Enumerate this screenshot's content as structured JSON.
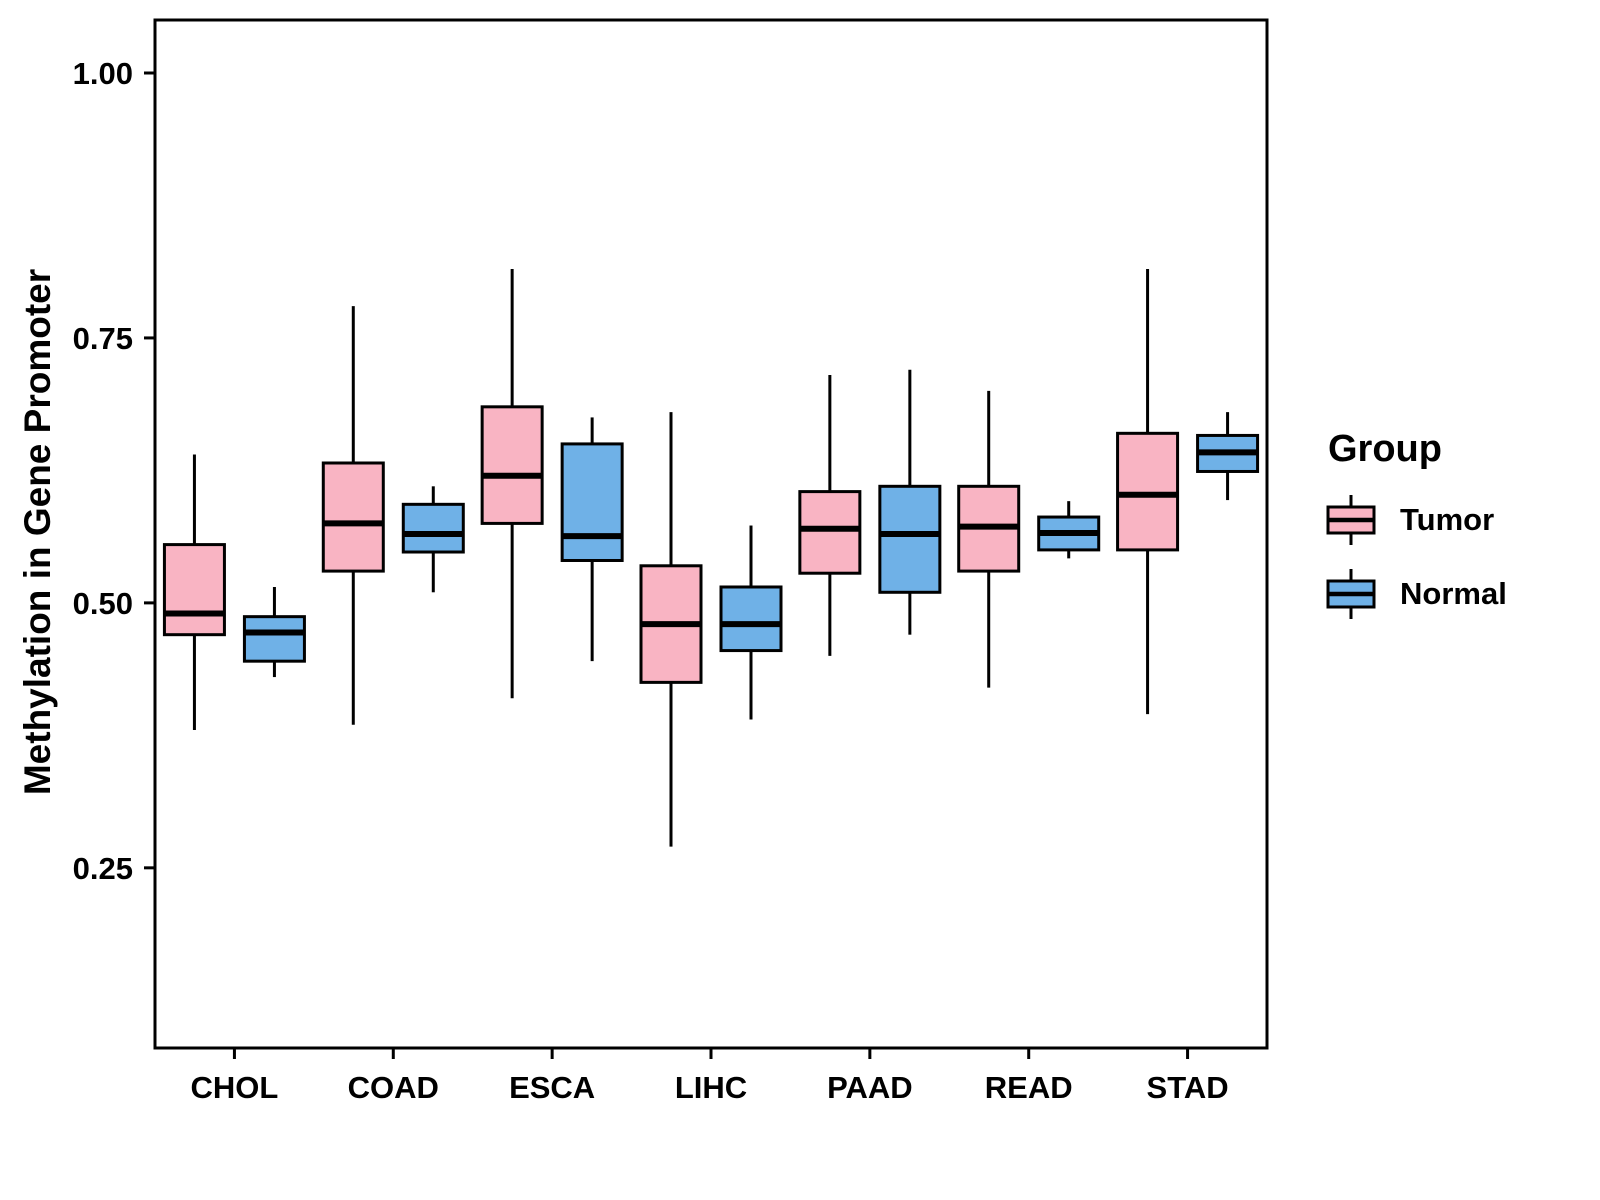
{
  "chart_data": {
    "type": "boxplot",
    "title": "",
    "xlabel": "",
    "ylabel": "Methylation in Gene Promoter",
    "categories": [
      "CHOL",
      "COAD",
      "ESCA",
      "LIHC",
      "PAAD",
      "READ",
      "STAD"
    ],
    "ylim": [
      0.08,
      1.05
    ],
    "yticks": [
      {
        "v": 0.25,
        "label": "0.25"
      },
      {
        "v": 0.5,
        "label": "0.50"
      },
      {
        "v": 0.75,
        "label": "0.75"
      },
      {
        "v": 1.0,
        "label": "1.00"
      }
    ],
    "grid": false,
    "legend_position": "right",
    "legend": {
      "title": "Group",
      "entries": [
        {
          "label": "Tumor",
          "color": "#F9B4C3"
        },
        {
          "label": "Normal",
          "color": "#6FB1E7"
        }
      ]
    },
    "box_format": "[whisker_low, q1, median, q3, whisker_high]",
    "series": [
      {
        "name": "Tumor",
        "color": "#F9B4C3",
        "boxes": [
          [
            0.38,
            0.47,
            0.49,
            0.555,
            0.64
          ],
          [
            0.385,
            0.53,
            0.575,
            0.632,
            0.78
          ],
          [
            0.41,
            0.575,
            0.62,
            0.685,
            0.815
          ],
          [
            0.27,
            0.425,
            0.48,
            0.535,
            0.68
          ],
          [
            0.45,
            0.528,
            0.57,
            0.605,
            0.715
          ],
          [
            0.42,
            0.53,
            0.572,
            0.61,
            0.7
          ],
          [
            0.395,
            0.55,
            0.602,
            0.66,
            0.815
          ]
        ]
      },
      {
        "name": "Normal",
        "color": "#6FB1E7",
        "boxes": [
          [
            0.43,
            0.445,
            0.472,
            0.487,
            0.515
          ],
          [
            0.51,
            0.548,
            0.565,
            0.593,
            0.61
          ],
          [
            0.445,
            0.54,
            0.563,
            0.65,
            0.675
          ],
          [
            0.39,
            0.455,
            0.48,
            0.515,
            0.573
          ],
          [
            0.47,
            0.51,
            0.565,
            0.61,
            0.72
          ],
          [
            0.542,
            0.55,
            0.566,
            0.581,
            0.596
          ],
          [
            0.597,
            0.624,
            0.642,
            0.658,
            0.68
          ]
        ]
      }
    ]
  }
}
